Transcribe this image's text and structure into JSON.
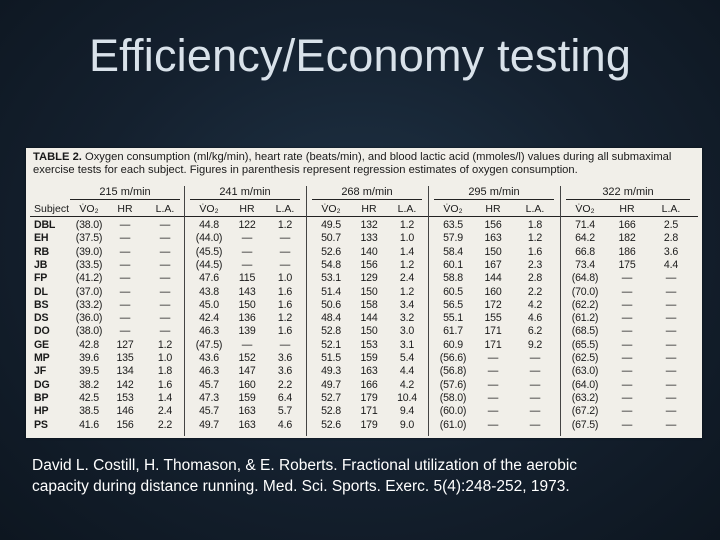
{
  "slide": {
    "title": "Efficiency/Economy testing",
    "citation": "David L. Costill, H. Thomason, & E. Roberts.  Fractional utilization of the aerobic capacity during distance running. Med. Sci. Sports. Exerc.  5(4):248-252, 1973."
  },
  "table": {
    "caption_bold": "TABLE 2.",
    "caption_line1": "Oxygen consumption (ml/kg/min), heart rate (beats/min), and blood lactic acid (mmoles/l) values during all submaximal",
    "caption_line2": "exercise tests for each subject. Figures in parenthesis represent regression estimates of oxygen consumption.",
    "speed_groups": [
      "215 m/min",
      "241 m/min",
      "268 m/min",
      "295 m/min",
      "322 m/min"
    ],
    "subject_header": "Subject",
    "measure_headers": [
      "V̇O₂",
      "HR",
      "L.A."
    ],
    "rows": [
      {
        "subject": "DBL",
        "values": [
          "(38.0)",
          "—",
          "—",
          "44.8",
          "122",
          "1.2",
          "49.5",
          "132",
          "1.2",
          "63.5",
          "156",
          "1.8",
          "71.4",
          "166",
          "2.5"
        ]
      },
      {
        "subject": "EH",
        "values": [
          "(37.5)",
          "—",
          "—",
          "(44.0)",
          "—",
          "—",
          "50.7",
          "133",
          "1.0",
          "57.9",
          "163",
          "1.2",
          "64.2",
          "182",
          "2.8"
        ]
      },
      {
        "subject": "RB",
        "values": [
          "(39.0)",
          "—",
          "—",
          "(45.5)",
          "—",
          "—",
          "52.6",
          "140",
          "1.4",
          "58.4",
          "150",
          "1.6",
          "66.8",
          "186",
          "3.6"
        ]
      },
      {
        "subject": "JB",
        "values": [
          "(33.5)",
          "—",
          "—",
          "(44.5)",
          "—",
          "—",
          "54.8",
          "156",
          "1.2",
          "60.1",
          "167",
          "2.3",
          "73.4",
          "175",
          "4.4"
        ]
      },
      {
        "subject": "FP",
        "values": [
          "(41.2)",
          "—",
          "—",
          "47.6",
          "115",
          "1.0",
          "53.1",
          "129",
          "2.4",
          "58.8",
          "144",
          "2.8",
          "(64.8)",
          "—",
          "—"
        ]
      },
      {
        "subject": "DL",
        "values": [
          "(37.0)",
          "—",
          "—",
          "43.8",
          "143",
          "1.6",
          "51.4",
          "150",
          "1.2",
          "60.5",
          "160",
          "2.2",
          "(70.0)",
          "—",
          "—"
        ]
      },
      {
        "subject": "BS",
        "values": [
          "(33.2)",
          "—",
          "—",
          "45.0",
          "150",
          "1.6",
          "50.6",
          "158",
          "3.4",
          "56.5",
          "172",
          "4.2",
          "(62.2)",
          "—",
          "—"
        ]
      },
      {
        "subject": "DS",
        "values": [
          "(36.0)",
          "—",
          "—",
          "42.4",
          "136",
          "1.2",
          "48.4",
          "144",
          "3.2",
          "55.1",
          "155",
          "4.6",
          "(61.2)",
          "—",
          "—"
        ]
      },
      {
        "subject": "DO",
        "values": [
          "(38.0)",
          "—",
          "—",
          "46.3",
          "139",
          "1.6",
          "52.8",
          "150",
          "3.0",
          "61.7",
          "171",
          "6.2",
          "(68.5)",
          "—",
          "—"
        ]
      },
      {
        "subject": "GE",
        "values": [
          "42.8",
          "127",
          "1.2",
          "(47.5)",
          "—",
          "—",
          "52.1",
          "153",
          "3.1",
          "60.9",
          "171",
          "9.2",
          "(65.5)",
          "—",
          "—"
        ]
      },
      {
        "subject": "MP",
        "values": [
          "39.6",
          "135",
          "1.0",
          "43.6",
          "152",
          "3.6",
          "51.5",
          "159",
          "5.4",
          "(56.6)",
          "—",
          "—",
          "(62.5)",
          "—",
          "—"
        ]
      },
      {
        "subject": "JF",
        "values": [
          "39.5",
          "134",
          "1.8",
          "46.3",
          "147",
          "3.6",
          "49.3",
          "163",
          "4.4",
          "(56.8)",
          "—",
          "—",
          "(63.0)",
          "—",
          "—"
        ]
      },
      {
        "subject": "DG",
        "values": [
          "38.2",
          "142",
          "1.6",
          "45.7",
          "160",
          "2.2",
          "49.7",
          "166",
          "4.2",
          "(57.6)",
          "—",
          "—",
          "(64.0)",
          "—",
          "—"
        ]
      },
      {
        "subject": "BP",
        "values": [
          "42.5",
          "153",
          "1.4",
          "47.3",
          "159",
          "6.4",
          "52.7",
          "179",
          "10.4",
          "(58.0)",
          "—",
          "—",
          "(63.2)",
          "—",
          "—"
        ]
      },
      {
        "subject": "HP",
        "values": [
          "38.5",
          "146",
          "2.4",
          "45.7",
          "163",
          "5.7",
          "52.8",
          "171",
          "9.4",
          "(60.0)",
          "—",
          "—",
          "(67.2)",
          "—",
          "—"
        ]
      },
      {
        "subject": "PS",
        "values": [
          "41.6",
          "156",
          "2.2",
          "49.7",
          "163",
          "4.6",
          "52.6",
          "179",
          "9.0",
          "(61.0)",
          "—",
          "—",
          "(67.5)",
          "—",
          "—"
        ]
      }
    ]
  }
}
